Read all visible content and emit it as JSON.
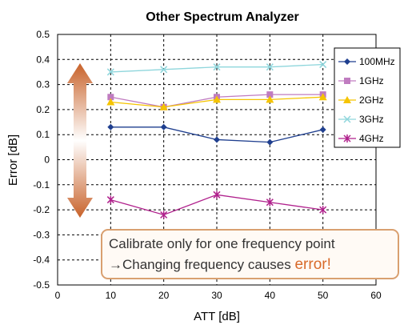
{
  "chart_data": {
    "type": "line",
    "title": "Other Spectrum Analyzer",
    "xlabel": "ATT [dB]",
    "ylabel": "Error [dB]",
    "xlim": [
      0,
      60
    ],
    "ylim": [
      -0.5,
      0.5
    ],
    "x_ticks": [
      "0",
      "10",
      "20",
      "30",
      "40",
      "50",
      "60"
    ],
    "y_ticks": [
      "0.5",
      "0.4",
      "0.3",
      "0.2",
      "0.1",
      "0",
      "-0.1",
      "-0.2",
      "-0.3",
      "-0.4",
      "-0.5"
    ],
    "grid": true,
    "legend_position": "right",
    "x": [
      10,
      20,
      30,
      40,
      50
    ],
    "series": [
      {
        "name": "100MHz",
        "values": [
          0.13,
          0.13,
          0.08,
          0.07,
          0.12
        ],
        "color": "#1f3f8f",
        "marker": "diamond"
      },
      {
        "name": "1GHz",
        "values": [
          0.25,
          0.21,
          0.25,
          0.26,
          0.26
        ],
        "color": "#c07cc0",
        "marker": "square"
      },
      {
        "name": "2GHz",
        "values": [
          0.23,
          0.21,
          0.24,
          0.24,
          0.25
        ],
        "color": "#f5c400",
        "marker": "triangle"
      },
      {
        "name": "3GHz",
        "values": [
          0.35,
          0.36,
          0.37,
          0.37,
          0.38
        ],
        "color": "#8fd6dc",
        "marker": "x"
      },
      {
        "name": "4GHz",
        "values": [
          -0.16,
          -0.22,
          -0.14,
          -0.17,
          -0.2
        ],
        "color": "#b0208c",
        "marker": "star"
      }
    ],
    "annotation": {
      "line1": "Calibrate only for one frequency point",
      "line2_prefix": "→Changing frequency causes ",
      "line2_highlight": "error!",
      "highlight_color": "#d86a2a",
      "border_color": "#d9a070"
    },
    "arrow_color": "#c8622a"
  }
}
